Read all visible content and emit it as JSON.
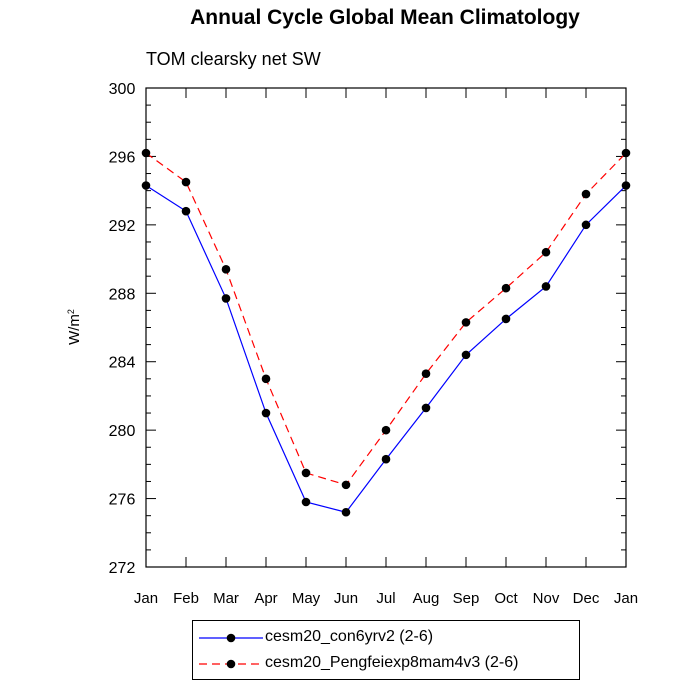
{
  "title": "Annual Cycle Global Mean Climatology",
  "subtitle": "TOM clearsky net SW",
  "chart_data": {
    "type": "line",
    "ylabel_base": "W/m",
    "ylabel_sup": "2",
    "xlabel": "",
    "categories": [
      "Jan",
      "Feb",
      "Mar",
      "Apr",
      "May",
      "Jun",
      "Jul",
      "Aug",
      "Sep",
      "Oct",
      "Nov",
      "Dec",
      "Jan"
    ],
    "ylim": [
      272,
      300
    ],
    "yticks": [
      272,
      276,
      280,
      284,
      288,
      292,
      296,
      300
    ],
    "series": [
      {
        "name": "cesm20_con6yrv2 (2-6)",
        "color": "#0000ff",
        "dash": "solid",
        "values": [
          294.3,
          292.8,
          287.7,
          281.0,
          275.8,
          275.2,
          278.3,
          281.3,
          284.4,
          286.5,
          288.4,
          292.0,
          294.3
        ]
      },
      {
        "name": "cesm20_Pengfeiexp8mam4v3 (2-6)",
        "color": "#ff0000",
        "dash": "dashed",
        "values": [
          296.2,
          294.5,
          289.4,
          283.0,
          277.5,
          276.8,
          280.0,
          283.3,
          286.3,
          288.3,
          290.4,
          293.8,
          296.2
        ]
      }
    ],
    "legend_position": "bottom",
    "marker": "filled-circle"
  }
}
